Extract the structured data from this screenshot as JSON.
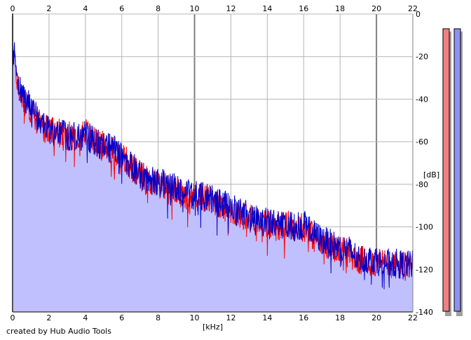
{
  "credit": "created by Hub Audio Tools",
  "chart_data": {
    "type": "line",
    "x_unit": "[kHz]",
    "y_unit": "[dB]",
    "xlim": [
      0,
      22
    ],
    "ylim": [
      -140,
      0
    ],
    "x_ticks": [
      "0",
      "2",
      "4",
      "6",
      "8",
      "10",
      "12",
      "14",
      "16",
      "18",
      "20",
      "22"
    ],
    "y_ticks": [
      "0",
      "-20",
      "-40",
      "-60",
      "-80",
      "-100",
      "-120",
      "-140"
    ],
    "grid": true,
    "series_colors": [
      "#ff0000",
      "#0000cc"
    ],
    "area_fill": "#c0c0ff",
    "x": [
      0,
      0.1,
      0.2,
      0.5,
      1,
      1.5,
      2,
      2.5,
      3,
      3.5,
      4,
      4.5,
      5,
      5.5,
      6,
      6.5,
      7,
      7.5,
      8,
      8.5,
      9,
      9.5,
      10,
      10.5,
      11,
      11.5,
      12,
      12.5,
      13,
      13.5,
      14,
      14.5,
      15,
      15.5,
      16,
      16.5,
      17,
      17.5,
      18,
      18.5,
      19,
      19.5,
      20,
      20.5,
      21,
      21.5,
      22
    ],
    "series": [
      {
        "values": [
          -22,
          -18,
          -30,
          -40,
          -45,
          -52,
          -55,
          -56,
          -57,
          -57,
          -55,
          -60,
          -62,
          -64,
          -66,
          -72,
          -76,
          -79,
          -80,
          -81,
          -83,
          -85,
          -86,
          -86,
          -88,
          -90,
          -92,
          -94,
          -96,
          -97,
          -98,
          -100,
          -99,
          -100,
          -100,
          -104,
          -107,
          -109,
          -111,
          -112,
          -116,
          -116,
          -117,
          -117,
          -118,
          -118,
          -119
        ]
      },
      {
        "values": [
          -20,
          -16,
          -28,
          -38,
          -44,
          -50,
          -54,
          -55,
          -57,
          -58,
          -57,
          -60,
          -62,
          -63,
          -66,
          -71,
          -75,
          -78,
          -79,
          -80,
          -82,
          -84,
          -85,
          -86,
          -87,
          -89,
          -91,
          -93,
          -95,
          -97,
          -98,
          -99,
          -99,
          -100,
          -99,
          -103,
          -106,
          -108,
          -110,
          -111,
          -115,
          -115,
          -116,
          -117,
          -117,
          -118,
          -118
        ]
      }
    ],
    "level_meters": [
      {
        "fill": "#f08080"
      },
      {
        "fill": "#9090ee"
      }
    ]
  }
}
